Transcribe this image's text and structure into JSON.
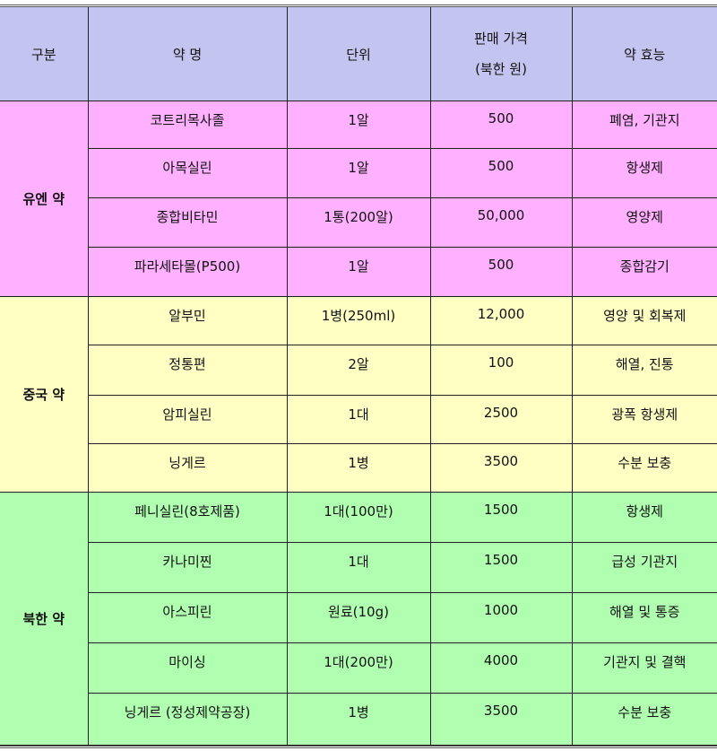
{
  "header": {
    "category": "구분",
    "name": "약 명",
    "unit": "단위",
    "price_line1": "판매 가격",
    "price_line2": "(북한 원)",
    "effect": "약 효능"
  },
  "colors": {
    "header": "#c4c4f0",
    "un": "#ffb0ff",
    "china": "#ffffc4",
    "nk": "#b0ffb0"
  },
  "groups": [
    {
      "label": "유엔 약",
      "color": "#ffb0ff",
      "rows": [
        {
          "name": "코트리목사졸",
          "unit": "1알",
          "price": "500",
          "effect": "폐염, 기관지"
        },
        {
          "name": "아목실린",
          "unit": "1알",
          "price": "500",
          "effect": "항생제"
        },
        {
          "name": "종합비타민",
          "unit": "1통(200알)",
          "price": "50,000",
          "effect": "영양제"
        },
        {
          "name": "파라세타몰(P500)",
          "unit": "1알",
          "price": "500",
          "effect": "종합감기"
        }
      ]
    },
    {
      "label": "중국 약",
      "color": "#ffffc4",
      "rows": [
        {
          "name": "알부민",
          "unit": "1병(250ml)",
          "price": "12,000",
          "effect": "영양 및 회복제"
        },
        {
          "name": "정통편",
          "unit": "2알",
          "price": "100",
          "effect": "해열, 진통"
        },
        {
          "name": "암피실린",
          "unit": "1대",
          "price": "2500",
          "effect": "광폭 항생제"
        },
        {
          "name": "닝게르",
          "unit": "1병",
          "price": "3500",
          "effect": "수분 보충"
        }
      ]
    },
    {
      "label": "북한 약",
      "color": "#b0ffb0",
      "rows": [
        {
          "name": "페니실린(8호제품)",
          "unit": "1대(100만)",
          "price": "1500",
          "effect": "항생제"
        },
        {
          "name": "카나미찐",
          "unit": "1대",
          "price": "1500",
          "effect": "급성 기관지"
        },
        {
          "name": "아스피린",
          "unit": "원료(10g)",
          "price": "1000",
          "effect": "해열 및 통증"
        },
        {
          "name": "마이싱",
          "unit": "1대(200만)",
          "price": "4000",
          "effect": "기관지 및 결핵"
        },
        {
          "name": "닝게르 (정성제약공장)",
          "unit": "1병",
          "price": "3500",
          "effect": "수분 보충"
        }
      ]
    }
  ]
}
